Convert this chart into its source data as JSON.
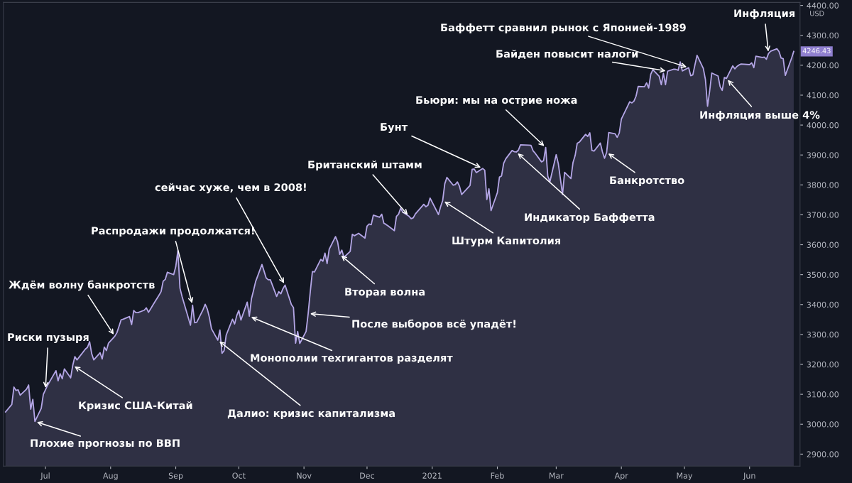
{
  "chart_data": {
    "type": "area",
    "color": "#b4a6e6",
    "ylabel": "USD",
    "x": [
      "2020-06-12",
      "2020-06-15",
      "2020-06-16",
      "2020-06-17",
      "2020-06-18",
      "2020-06-19",
      "2020-06-22",
      "2020-06-23",
      "2020-06-24",
      "2020-06-25",
      "2020-06-26",
      "2020-06-29",
      "2020-06-30",
      "2020-07-01",
      "2020-07-02",
      "2020-07-06",
      "2020-07-07",
      "2020-07-08",
      "2020-07-09",
      "2020-07-10",
      "2020-07-13",
      "2020-07-14",
      "2020-07-15",
      "2020-07-16",
      "2020-07-17",
      "2020-07-20",
      "2020-07-21",
      "2020-07-22",
      "2020-07-23",
      "2020-07-24",
      "2020-07-27",
      "2020-07-28",
      "2020-07-29",
      "2020-07-30",
      "2020-07-31",
      "2020-08-03",
      "2020-08-04",
      "2020-08-05",
      "2020-08-06",
      "2020-08-07",
      "2020-08-10",
      "2020-08-11",
      "2020-08-12",
      "2020-08-13",
      "2020-08-14",
      "2020-08-17",
      "2020-08-18",
      "2020-08-19",
      "2020-08-20",
      "2020-08-21",
      "2020-08-24",
      "2020-08-25",
      "2020-08-26",
      "2020-08-27",
      "2020-08-28",
      "2020-08-31",
      "2020-09-01",
      "2020-09-02",
      "2020-09-03",
      "2020-09-04",
      "2020-09-08",
      "2020-09-09",
      "2020-09-10",
      "2020-09-11",
      "2020-09-14",
      "2020-09-15",
      "2020-09-16",
      "2020-09-17",
      "2020-09-18",
      "2020-09-21",
      "2020-09-22",
      "2020-09-23",
      "2020-09-24",
      "2020-09-25",
      "2020-09-28",
      "2020-09-29",
      "2020-09-30",
      "2020-10-01",
      "2020-10-02",
      "2020-10-05",
      "2020-10-06",
      "2020-10-07",
      "2020-10-08",
      "2020-10-09",
      "2020-10-12",
      "2020-10-13",
      "2020-10-14",
      "2020-10-15",
      "2020-10-16",
      "2020-10-19",
      "2020-10-20",
      "2020-10-21",
      "2020-10-22",
      "2020-10-23",
      "2020-10-26",
      "2020-10-27",
      "2020-10-28",
      "2020-10-29",
      "2020-10-30",
      "2020-11-02",
      "2020-11-03",
      "2020-11-04",
      "2020-11-05",
      "2020-11-06",
      "2020-11-09",
      "2020-11-10",
      "2020-11-11",
      "2020-11-12",
      "2020-11-13",
      "2020-11-16",
      "2020-11-17",
      "2020-11-18",
      "2020-11-19",
      "2020-11-20",
      "2020-11-23",
      "2020-11-24",
      "2020-11-25",
      "2020-11-27",
      "2020-11-30",
      "2020-12-01",
      "2020-12-02",
      "2020-12-03",
      "2020-12-04",
      "2020-12-07",
      "2020-12-08",
      "2020-12-09",
      "2020-12-10",
      "2020-12-11",
      "2020-12-14",
      "2020-12-15",
      "2020-12-16",
      "2020-12-17",
      "2020-12-18",
      "2020-12-21",
      "2020-12-22",
      "2020-12-23",
      "2020-12-24",
      "2020-12-28",
      "2020-12-29",
      "2020-12-30",
      "2020-12-31",
      "2021-01-04",
      "2021-01-05",
      "2021-01-06",
      "2021-01-07",
      "2021-01-08",
      "2021-01-11",
      "2021-01-12",
      "2021-01-13",
      "2021-01-14",
      "2021-01-15",
      "2021-01-19",
      "2021-01-20",
      "2021-01-21",
      "2021-01-22",
      "2021-01-25",
      "2021-01-26",
      "2021-01-27",
      "2021-01-28",
      "2021-01-29",
      "2021-02-01",
      "2021-02-02",
      "2021-02-03",
      "2021-02-04",
      "2021-02-05",
      "2021-02-08",
      "2021-02-09",
      "2021-02-10",
      "2021-02-11",
      "2021-02-12",
      "2021-02-16",
      "2021-02-17",
      "2021-02-18",
      "2021-02-19",
      "2021-02-22",
      "2021-02-23",
      "2021-02-24",
      "2021-02-25",
      "2021-02-26",
      "2021-03-01",
      "2021-03-02",
      "2021-03-03",
      "2021-03-04",
      "2021-03-05",
      "2021-03-08",
      "2021-03-09",
      "2021-03-10",
      "2021-03-11",
      "2021-03-12",
      "2021-03-15",
      "2021-03-16",
      "2021-03-17",
      "2021-03-18",
      "2021-03-19",
      "2021-03-22",
      "2021-03-23",
      "2021-03-24",
      "2021-03-25",
      "2021-03-26",
      "2021-03-29",
      "2021-03-30",
      "2021-03-31",
      "2021-04-01",
      "2021-04-05",
      "2021-04-06",
      "2021-04-07",
      "2021-04-08",
      "2021-04-09",
      "2021-04-12",
      "2021-04-13",
      "2021-04-14",
      "2021-04-15",
      "2021-04-16",
      "2021-04-19",
      "2021-04-20",
      "2021-04-21",
      "2021-04-22",
      "2021-04-23",
      "2021-04-26",
      "2021-04-27",
      "2021-04-28",
      "2021-04-29",
      "2021-04-30",
      "2021-05-03",
      "2021-05-04",
      "2021-05-05",
      "2021-05-06",
      "2021-05-07",
      "2021-05-10",
      "2021-05-11",
      "2021-05-12",
      "2021-05-13",
      "2021-05-14",
      "2021-05-17",
      "2021-05-18",
      "2021-05-19",
      "2021-05-20",
      "2021-05-21",
      "2021-05-24",
      "2021-05-25",
      "2021-05-26",
      "2021-05-27",
      "2021-05-28",
      "2021-06-01",
      "2021-06-02",
      "2021-06-03",
      "2021-06-04",
      "2021-06-07",
      "2021-06-08",
      "2021-06-09",
      "2021-06-10",
      "2021-06-11",
      "2021-06-14",
      "2021-06-15",
      "2021-06-16",
      "2021-06-17",
      "2021-06-18",
      "2021-06-21",
      "2021-06-22"
    ],
    "values": [
      3041,
      3066,
      3124,
      3113,
      3115,
      3097,
      3117,
      3131,
      3050,
      3083,
      3009,
      3053,
      3100,
      3115,
      3130,
      3179,
      3145,
      3169,
      3152,
      3185,
      3155,
      3197,
      3226,
      3215,
      3224,
      3251,
      3257,
      3276,
      3236,
      3215,
      3239,
      3218,
      3258,
      3246,
      3271,
      3294,
      3306,
      3327,
      3349,
      3351,
      3360,
      3333,
      3380,
      3373,
      3373,
      3381,
      3389,
      3374,
      3385,
      3397,
      3431,
      3443,
      3478,
      3484,
      3508,
      3500,
      3527,
      3580,
      3455,
      3427,
      3331,
      3398,
      3339,
      3341,
      3383,
      3401,
      3385,
      3357,
      3319,
      3281,
      3315,
      3237,
      3246,
      3298,
      3351,
      3335,
      3363,
      3380,
      3348,
      3408,
      3361,
      3419,
      3447,
      3477,
      3534,
      3512,
      3489,
      3483,
      3483,
      3427,
      3443,
      3436,
      3453,
      3465,
      3400,
      3390,
      3271,
      3310,
      3270,
      3310,
      3370,
      3443,
      3510,
      3509,
      3551,
      3545,
      3572,
      3537,
      3585,
      3627,
      3610,
      3568,
      3582,
      3558,
      3578,
      3635,
      3630,
      3638,
      3622,
      3662,
      3669,
      3667,
      3699,
      3692,
      3702,
      3672,
      3668,
      3663,
      3647,
      3695,
      3702,
      3722,
      3709,
      3695,
      3687,
      3690,
      3703,
      3735,
      3727,
      3732,
      3756,
      3701,
      3727,
      3748,
      3804,
      3825,
      3799,
      3801,
      3810,
      3795,
      3768,
      3798,
      3852,
      3853,
      3841,
      3855,
      3849,
      3751,
      3787,
      3714,
      3774,
      3826,
      3830,
      3872,
      3887,
      3915,
      3911,
      3910,
      3916,
      3934,
      3933,
      3932,
      3914,
      3906,
      3877,
      3881,
      3925,
      3829,
      3811,
      3901,
      3871,
      3820,
      3768,
      3842,
      3821,
      3875,
      3898,
      3939,
      3943,
      3969,
      3962,
      3974,
      3915,
      3913,
      3940,
      3910,
      3889,
      3909,
      3975,
      3971,
      3959,
      3973,
      4020,
      4078,
      4074,
      4080,
      4097,
      4129,
      4128,
      4141,
      4124,
      4170,
      4185,
      4163,
      4135,
      4173,
      4135,
      4180,
      4187,
      4186,
      4183,
      4211,
      4181,
      4192,
      4165,
      4168,
      4201,
      4233,
      4189,
      4152,
      4063,
      4113,
      4174,
      4164,
      4128,
      4116,
      4159,
      4156,
      4198,
      4188,
      4196,
      4201,
      4204,
      4202,
      4208,
      4192,
      4230,
      4226,
      4227,
      4220,
      4239,
      4247,
      4255,
      4246,
      4224,
      4222,
      4166,
      4224,
      4246
    ],
    "xlim": [
      "2020-06-11",
      "2021-06-25"
    ],
    "xticks": [
      {
        "value": "2020-07-01",
        "label": "Jul"
      },
      {
        "value": "2020-08-01",
        "label": "Aug"
      },
      {
        "value": "2020-09-01",
        "label": "Sep"
      },
      {
        "value": "2020-10-01",
        "label": "Oct"
      },
      {
        "value": "2020-11-01",
        "label": "Nov"
      },
      {
        "value": "2020-12-01",
        "label": "Dec"
      },
      {
        "value": "2021-01-01",
        "label": "2021"
      },
      {
        "value": "2021-02-01",
        "label": "Feb"
      },
      {
        "value": "2021-03-01",
        "label": "Mar"
      },
      {
        "value": "2021-04-01",
        "label": "Apr"
      },
      {
        "value": "2021-05-01",
        "label": "May"
      },
      {
        "value": "2021-06-01",
        "label": "Jun"
      }
    ],
    "ylim": [
      2860,
      4410
    ],
    "yticks": [
      {
        "value": 2900,
        "label": "2900.00"
      },
      {
        "value": 3000,
        "label": "3000.00"
      },
      {
        "value": 3100,
        "label": "3100.00"
      },
      {
        "value": 3200,
        "label": "3200.00"
      },
      {
        "value": 3300,
        "label": "3300.00"
      },
      {
        "value": 3400,
        "label": "3400.00"
      },
      {
        "value": 3500,
        "label": "3500.00"
      },
      {
        "value": 3600,
        "label": "3600.00"
      },
      {
        "value": 3700,
        "label": "3700.00"
      },
      {
        "value": 3800,
        "label": "3800.00"
      },
      {
        "value": 3900,
        "label": "3900.00"
      },
      {
        "value": 4000,
        "label": "4000.00"
      },
      {
        "value": 4100,
        "label": "4100.00"
      },
      {
        "value": 4200,
        "label": "4200.00"
      },
      {
        "value": 4300,
        "label": "4300.00"
      },
      {
        "value": 4400,
        "label": "4400.00"
      }
    ],
    "annotations": [
      {
        "text": "Плохие прогнозы по ВВП",
        "x": "2020-06-26",
        "y": 3009
      },
      {
        "text": "Риски пузыря",
        "x": "2020-07-01",
        "y": 3115
      },
      {
        "text": "Кризис США-Китай",
        "x": "2020-07-14",
        "y": 3197
      },
      {
        "text": "Ждём волну банкротств",
        "x": "2020-08-03",
        "y": 3294
      },
      {
        "text": "Распродажи продолжатся!",
        "x": "2020-09-09",
        "y": 3398
      },
      {
        "text": "Далио: кризис капитализма",
        "x": "2020-09-21",
        "y": 3281
      },
      {
        "text": "Монополии техгигантов разделят",
        "x": "2020-10-06",
        "y": 3361
      },
      {
        "text": "сейчас хуже, чем в 2008!",
        "x": "2020-10-23",
        "y": 3465
      },
      {
        "text": "Вторая волна",
        "x": "2020-11-18",
        "y": 3568
      },
      {
        "text": "После выборов всё упадёт!",
        "x": "2020-11-03",
        "y": 3370
      },
      {
        "text": "Британский штамм",
        "x": "2020-12-21",
        "y": 3695
      },
      {
        "text": "Штурм Капитолия",
        "x": "2021-01-06",
        "y": 3748
      },
      {
        "text": "Бунт",
        "x": "2021-01-25",
        "y": 3855
      },
      {
        "text": "Бьюри: мы на острие ножа",
        "x": "2021-02-24",
        "y": 3925
      },
      {
        "text": "Индикатор Баффетта",
        "x": "2021-02-10",
        "y": 3910
      },
      {
        "text": "Банкротство",
        "x": "2021-03-25",
        "y": 3909
      },
      {
        "text": "Байден повысит налоги",
        "x": "2021-04-23",
        "y": 4180
      },
      {
        "text": "Баффетт сравнил рынок с Японией-1989",
        "x": "2021-05-03",
        "y": 4192
      },
      {
        "text": "Инфляция",
        "x": "2021-06-10",
        "y": 4239
      },
      {
        "text": "Инфляция выше 4%",
        "x": "2021-05-21",
        "y": 4156
      },
      {
        "text": "4246.43",
        "x": "2021-06-22",
        "y": 4246.43
      }
    ]
  }
}
